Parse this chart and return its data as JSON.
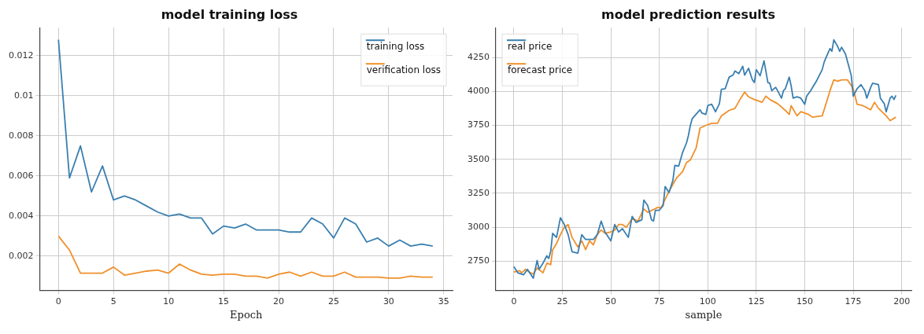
{
  "chart_data": [
    {
      "type": "line",
      "title": "model training loss",
      "xlabel": "Epoch",
      "x": [
        0,
        1,
        2,
        3,
        4,
        5,
        6,
        7,
        8,
        9,
        10,
        11,
        12,
        13,
        14,
        15,
        16,
        17,
        18,
        19,
        20,
        21,
        22,
        23,
        24,
        25,
        26,
        27,
        28,
        29,
        30,
        31,
        32,
        33,
        34
      ],
      "series": [
        {
          "name": "training loss",
          "color": "#3a7fb0",
          "values": [
            0.0128,
            0.0059,
            0.0075,
            0.0052,
            0.0065,
            0.0048,
            0.005,
            0.0048,
            0.0045,
            0.0042,
            0.004,
            0.0041,
            0.0039,
            0.0039,
            0.0031,
            0.0035,
            0.0034,
            0.0036,
            0.0033,
            0.0033,
            0.0033,
            0.0032,
            0.0032,
            0.0039,
            0.0036,
            0.0029,
            0.0039,
            0.0036,
            0.0027,
            0.0029,
            0.0025,
            0.0028,
            0.0025,
            0.0026,
            0.0025
          ]
        },
        {
          "name": "verification loss",
          "color": "#f0902a",
          "values": [
            0.003,
            0.0023,
            0.00115,
            0.00115,
            0.00115,
            0.00145,
            0.00105,
            0.00115,
            0.00125,
            0.0013,
            0.00115,
            0.0016,
            0.0013,
            0.0011,
            0.00105,
            0.0011,
            0.0011,
            0.001,
            0.001,
            0.0009,
            0.0011,
            0.0012,
            0.001,
            0.0012,
            0.001,
            0.001,
            0.0012,
            0.00095,
            0.00095,
            0.00095,
            0.0009,
            0.0009,
            0.001,
            0.00095,
            0.00095
          ]
        }
      ],
      "xlim": [
        -1.7,
        35.8
      ],
      "xticks": [
        0,
        5,
        10,
        15,
        20,
        25,
        30,
        35
      ],
      "ylim": [
        0.0003,
        0.0134
      ],
      "yticks": [
        0.002,
        0.004,
        0.006,
        0.008,
        0.01,
        0.012
      ],
      "grid": true,
      "legend": "top right",
      "marker": "none",
      "line_style": "solid"
    },
    {
      "type": "line",
      "title": "model prediction results",
      "xlabel": "sample",
      "series": [
        {
          "name": "real price",
          "color": "#3a7fb0",
          "x": [
            0,
            2,
            5,
            7,
            10,
            11,
            12,
            13,
            15,
            17,
            18,
            19,
            20,
            22,
            24,
            26,
            28,
            30,
            33,
            35,
            37,
            39,
            41,
            43,
            45,
            47,
            50,
            52,
            54,
            56,
            59,
            61,
            63,
            66,
            67,
            69,
            71,
            72,
            73,
            75,
            77,
            78,
            80,
            82,
            83,
            85,
            87,
            89,
            90,
            91,
            92,
            96,
            97,
            99,
            100,
            102,
            104,
            106,
            107,
            109,
            111,
            113,
            114,
            116,
            118,
            119,
            121,
            123,
            124,
            125,
            127,
            129,
            131,
            132,
            133,
            135,
            136,
            138,
            139,
            140,
            142,
            143,
            144,
            146,
            148,
            150,
            151,
            153,
            156,
            159,
            160,
            161,
            163,
            164,
            165,
            167,
            168,
            169,
            171,
            173,
            174,
            175,
            177,
            179,
            181,
            182,
            184,
            185,
            188,
            189,
            191,
            192,
            194,
            195,
            196,
            197
          ],
          "values": [
            2710,
            2665,
            2650,
            2690,
            2625,
            2690,
            2755,
            2690,
            2735,
            2790,
            2770,
            2825,
            2955,
            2925,
            3070,
            3020,
            2945,
            2820,
            2810,
            2945,
            2910,
            2910,
            2910,
            2945,
            3045,
            2965,
            2900,
            3020,
            2965,
            2990,
            2925,
            3080,
            3035,
            3055,
            3200,
            3160,
            3055,
            3045,
            3125,
            3125,
            3160,
            3300,
            3255,
            3345,
            3455,
            3450,
            3550,
            3620,
            3675,
            3750,
            3800,
            3865,
            3840,
            3830,
            3895,
            3905,
            3850,
            3910,
            4015,
            4020,
            4105,
            4120,
            4150,
            4130,
            4185,
            4120,
            4170,
            4085,
            4065,
            4160,
            4115,
            4225,
            4065,
            4060,
            4005,
            4030,
            4005,
            3950,
            4005,
            4020,
            4105,
            4040,
            3950,
            3960,
            3950,
            3905,
            3965,
            4005,
            4075,
            4160,
            4215,
            4250,
            4315,
            4295,
            4380,
            4330,
            4295,
            4325,
            4275,
            4170,
            4115,
            3965,
            4020,
            4050,
            4005,
            3950,
            4030,
            4060,
            4050,
            3950,
            3910,
            3850,
            3950,
            3965,
            3940,
            3970
          ]
        },
        {
          "name": "forecast price",
          "color": "#f0902a",
          "x": [
            0,
            3,
            4,
            6,
            8,
            10,
            12,
            15,
            17,
            19,
            20,
            22,
            24,
            26,
            28,
            30,
            33,
            35,
            37,
            39,
            41,
            43,
            45,
            47,
            50,
            52,
            54,
            56,
            58,
            61,
            64,
            67,
            69,
            72,
            74,
            76,
            79,
            81,
            84,
            87,
            89,
            91,
            94,
            96,
            99,
            102,
            105,
            107,
            111,
            114,
            117,
            119,
            121,
            124,
            128,
            130,
            132,
            136,
            140,
            142,
            143,
            146,
            148,
            152,
            154,
            159,
            161,
            163,
            165,
            167,
            169,
            172,
            175,
            177,
            180,
            184,
            186,
            188,
            192,
            194,
            197
          ],
          "values": [
            2670,
            2680,
            2665,
            2690,
            2670,
            2655,
            2700,
            2665,
            2735,
            2725,
            2835,
            2880,
            2945,
            3000,
            3020,
            2925,
            2855,
            2900,
            2835,
            2900,
            2870,
            2945,
            2980,
            2955,
            2965,
            2980,
            3020,
            3020,
            3000,
            3065,
            3045,
            3135,
            3110,
            3130,
            3145,
            3145,
            3235,
            3290,
            3365,
            3410,
            3475,
            3495,
            3585,
            3730,
            3750,
            3765,
            3765,
            3820,
            3860,
            3875,
            3950,
            3995,
            3960,
            3940,
            3920,
            3965,
            3940,
            3910,
            3860,
            3830,
            3895,
            3820,
            3850,
            3830,
            3810,
            3820,
            3910,
            4005,
            4085,
            4075,
            4085,
            4085,
            4020,
            3905,
            3895,
            3865,
            3920,
            3875,
            3820,
            3785,
            3810
          ]
        }
      ],
      "xlim": [
        -9.3,
        205
      ],
      "xticks": [
        0,
        25,
        50,
        75,
        100,
        125,
        150,
        175,
        200
      ],
      "ylim": [
        2537,
        4469
      ],
      "yticks": [
        2750,
        3000,
        3250,
        3500,
        3750,
        4000,
        4250
      ],
      "grid": true,
      "legend": "top left",
      "marker": "none",
      "line_style": "solid"
    }
  ]
}
